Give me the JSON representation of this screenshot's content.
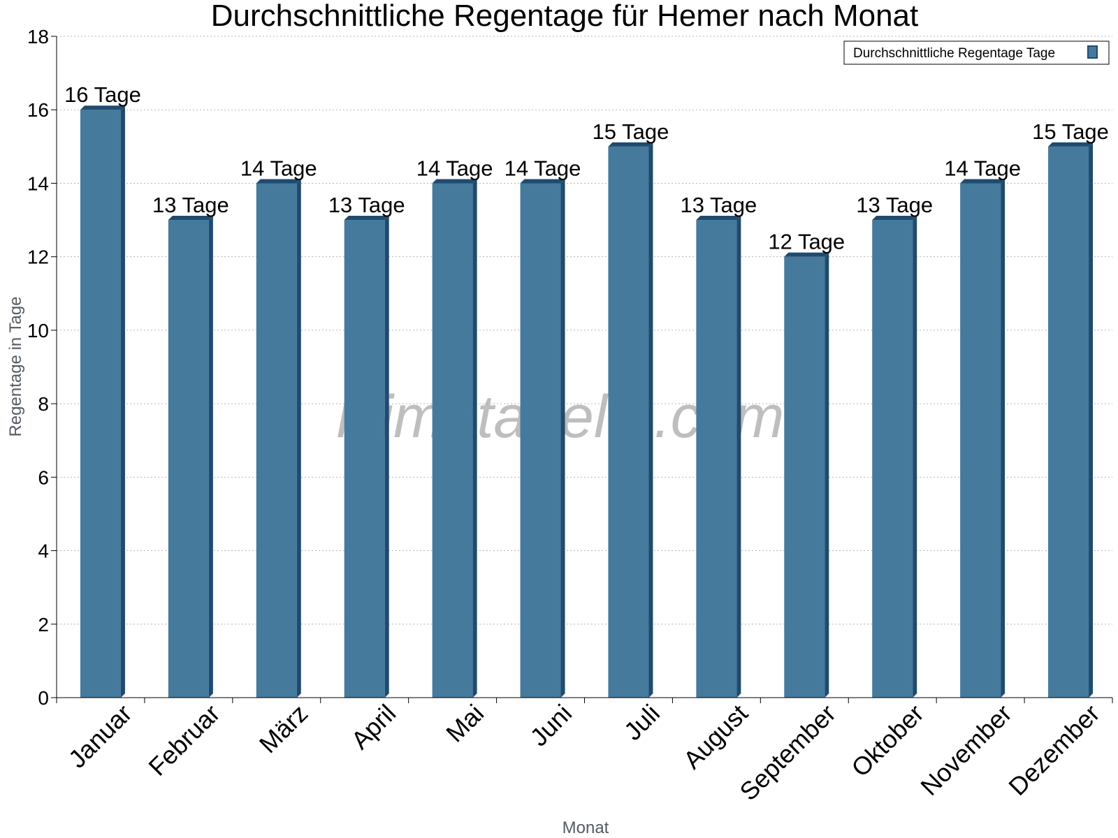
{
  "chart_data": {
    "type": "bar",
    "title": "Durchschnittliche Regentage für Hemer nach Monat",
    "xlabel": "Monat",
    "ylabel": "Regentage in Tage",
    "ylim": [
      0,
      18
    ],
    "yticks": [
      0,
      2,
      4,
      6,
      8,
      10,
      12,
      14,
      16,
      18
    ],
    "grid": "horizontal dotted",
    "legend_position": "top-right",
    "categories": [
      "Januar",
      "Februar",
      "März",
      "April",
      "Mai",
      "Juni",
      "Juli",
      "August",
      "September",
      "Oktober",
      "November",
      "Dezember"
    ],
    "series": [
      {
        "name": "Durchschnittliche Regentage Tage",
        "values": [
          16,
          13,
          14,
          13,
          14,
          14,
          15,
          13,
          12,
          13,
          14,
          15
        ],
        "data_labels": [
          "16 Tage",
          "13 Tage",
          "14 Tage",
          "13 Tage",
          "14 Tage",
          "14 Tage",
          "15 Tage",
          "13 Tage",
          "12 Tage",
          "13 Tage",
          "14 Tage",
          "15 Tage"
        ]
      }
    ],
    "bar_color": "#457a9d",
    "bar_shade_color": "#1e4b6e"
  },
  "watermark": "klimatabelle.com"
}
